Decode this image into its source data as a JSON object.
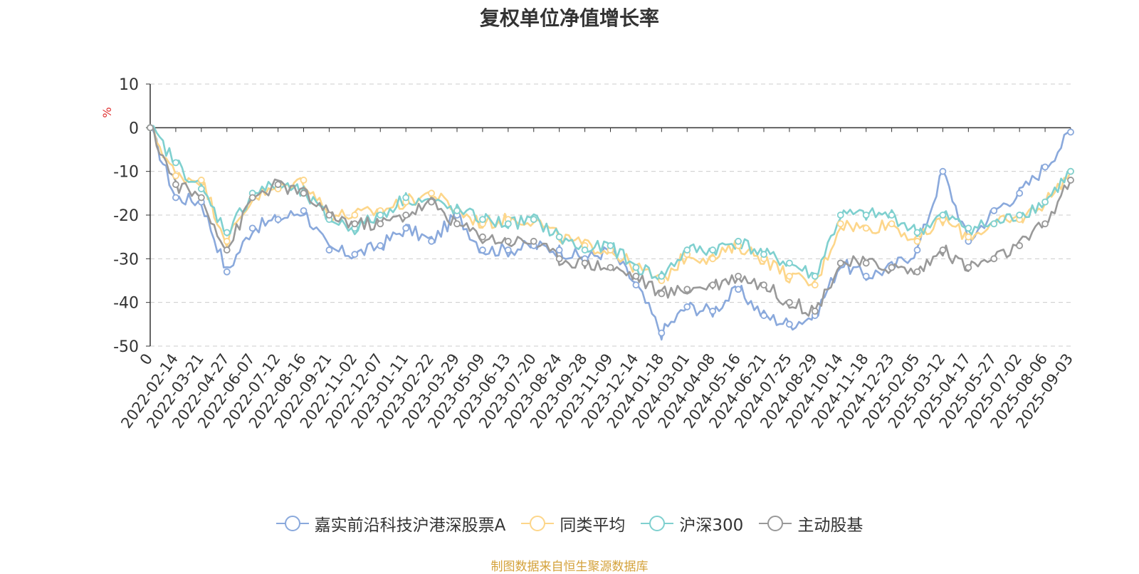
{
  "chart_data": {
    "type": "line",
    "title": "复权单位净值增长率",
    "ylabel": "%",
    "ylim": [
      -50,
      10
    ],
    "yticks": [
      "10",
      "0",
      "-10",
      "-20",
      "-30",
      "-40",
      "-50"
    ],
    "categories": [
      "0",
      "2022-02-14",
      "2022-03-21",
      "2022-04-27",
      "2022-06-07",
      "2022-07-12",
      "2022-08-16",
      "2022-09-21",
      "2022-11-02",
      "2022-12-07",
      "2023-01-11",
      "2023-02-22",
      "2023-03-29",
      "2023-05-09",
      "2023-06-13",
      "2023-07-20",
      "2023-08-24",
      "2023-09-28",
      "2023-11-09",
      "2023-12-14",
      "2024-01-18",
      "2024-03-01",
      "2024-04-08",
      "2024-05-16",
      "2024-06-21",
      "2024-07-25",
      "2024-08-29",
      "2024-10-14",
      "2024-11-18",
      "2024-12-23",
      "2025-02-05",
      "2025-03-12",
      "2025-04-17",
      "2025-05-27",
      "2025-07-02",
      "2025-08-06",
      "2025-09-03"
    ],
    "grid": true,
    "legend_position": "bottom",
    "series": [
      {
        "name": "嘉实前沿科技沪港深股票A",
        "color": "#8aa9dc",
        "values": [
          0,
          -16,
          -17,
          -33,
          -23,
          -21,
          -19,
          -28,
          -29,
          -27,
          -23,
          -26,
          -20,
          -28,
          -28,
          -27,
          -28,
          -30,
          -28,
          -36,
          -47,
          -41,
          -42,
          -37,
          -43,
          -45,
          -43,
          -31,
          -34,
          -32,
          -28,
          -10,
          -26,
          -19,
          -15,
          -9,
          -1
        ]
      },
      {
        "name": "同类平均",
        "color": "#fdd68a",
        "values": [
          0,
          -11,
          -12,
          -26,
          -16,
          -14,
          -12,
          -20,
          -20,
          -19,
          -17,
          -15,
          -19,
          -22,
          -21,
          -21,
          -25,
          -27,
          -28,
          -32,
          -35,
          -29,
          -30,
          -27,
          -30,
          -34,
          -36,
          -22,
          -23,
          -22,
          -26,
          -21,
          -25,
          -22,
          -21,
          -17,
          -10
        ]
      },
      {
        "name": "沪深300",
        "color": "#7fd0cf",
        "values": [
          0,
          -8,
          -14,
          -24,
          -15,
          -13,
          -15,
          -21,
          -23,
          -20,
          -16,
          -17,
          -19,
          -21,
          -22,
          -21,
          -25,
          -28,
          -27,
          -32,
          -34,
          -28,
          -28,
          -26,
          -29,
          -31,
          -34,
          -20,
          -20,
          -20,
          -24,
          -20,
          -23,
          -22,
          -20,
          -17,
          -10
        ]
      },
      {
        "name": "主动股基",
        "color": "#999999",
        "values": [
          0,
          -13,
          -16,
          -28,
          -16,
          -13,
          -15,
          -20,
          -22,
          -22,
          -20,
          -17,
          -22,
          -25,
          -26,
          -26,
          -30,
          -31,
          -32,
          -34,
          -38,
          -37,
          -36,
          -34,
          -36,
          -40,
          -42,
          -31,
          -31,
          -32,
          -33,
          -28,
          -32,
          -30,
          -27,
          -22,
          -12
        ]
      }
    ]
  },
  "legend": {
    "items": [
      "嘉实前沿科技沪港深股票A",
      "同类平均",
      "沪深300",
      "主动股基"
    ]
  },
  "source_text": "制图数据来自恒生聚源数据库"
}
